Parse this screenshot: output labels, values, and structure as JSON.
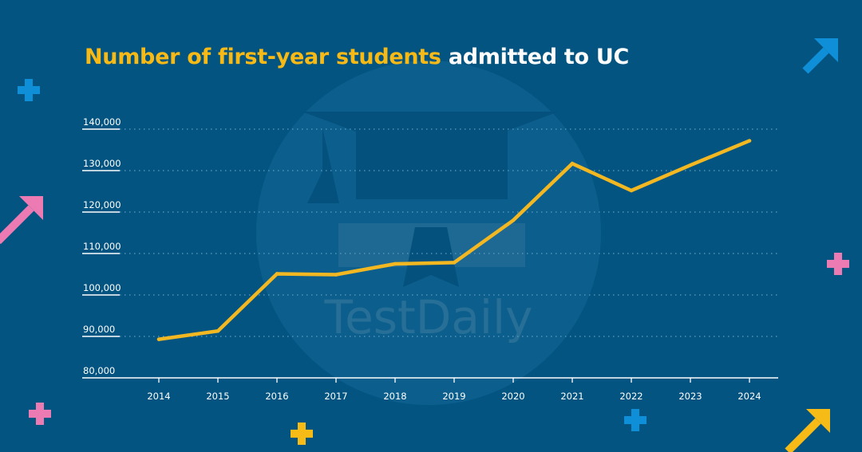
{
  "title": {
    "highlight": "Number of first-year students",
    "rest": "admitted to UC"
  },
  "watermark": "TestDaily",
  "colors": {
    "background": "#035481",
    "line": "#f2b721",
    "highlight_text": "#f7b916",
    "axis": "#ffffff",
    "grid": "#5f9cc0",
    "deco_blue": "#0f8fd8",
    "deco_pink": "#ec7ab3",
    "deco_yellow": "#f6bb16"
  },
  "chart_data": {
    "type": "line",
    "x": [
      "2014",
      "2015",
      "2016",
      "2017",
      "2018",
      "2019",
      "2020",
      "2021",
      "2022",
      "2023",
      "2024"
    ],
    "series": [
      {
        "values": [
          89300,
          91300,
          105100,
          104900,
          107500,
          107800,
          118000,
          131700,
          125200,
          131300,
          137200
        ]
      }
    ],
    "ylim": [
      80000,
      140000
    ],
    "yticks": [
      80000,
      90000,
      100000,
      110000,
      120000,
      130000,
      140000
    ],
    "ytick_labels": [
      "80,000",
      "90,000",
      "100,000",
      "110,000",
      "120,000",
      "130,000",
      "140,000"
    ],
    "grid": true,
    "legend": "none"
  }
}
